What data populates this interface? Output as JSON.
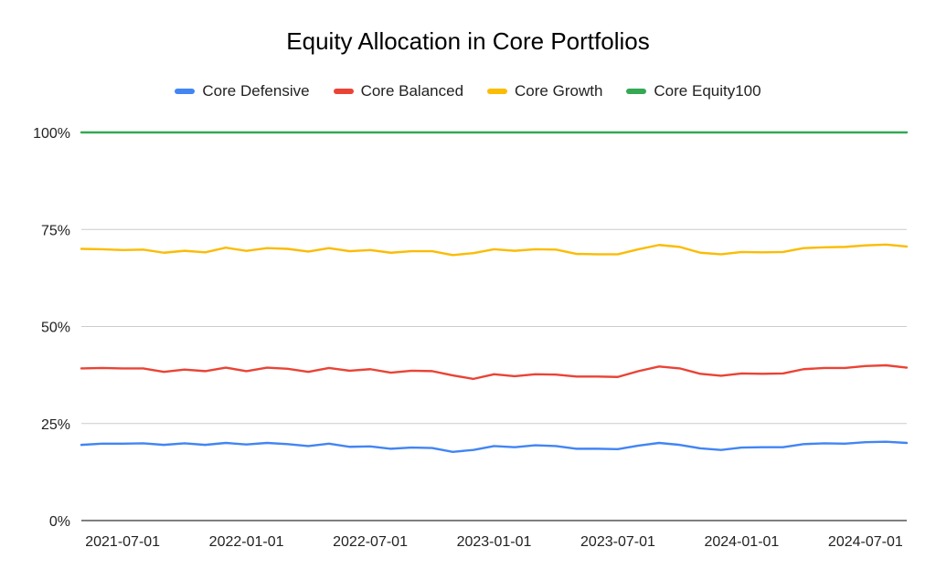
{
  "chart_data": {
    "type": "line",
    "title": "Equity Allocation in Core Portfolios",
    "xlabel": "",
    "ylabel": "",
    "x": [
      "2021-05-01",
      "2021-06-01",
      "2021-07-01",
      "2021-08-01",
      "2021-09-01",
      "2021-10-01",
      "2021-11-01",
      "2021-12-01",
      "2022-01-01",
      "2022-02-01",
      "2022-03-01",
      "2022-04-01",
      "2022-05-01",
      "2022-06-01",
      "2022-07-01",
      "2022-08-01",
      "2022-09-01",
      "2022-10-01",
      "2022-11-01",
      "2022-12-01",
      "2023-01-01",
      "2023-02-01",
      "2023-03-01",
      "2023-04-01",
      "2023-05-01",
      "2023-06-01",
      "2023-07-01",
      "2023-08-01",
      "2023-09-01",
      "2023-10-01",
      "2023-11-01",
      "2023-12-01",
      "2024-01-01",
      "2024-02-01",
      "2024-03-01",
      "2024-04-01",
      "2024-05-01",
      "2024-06-01",
      "2024-07-01",
      "2024-08-01",
      "2024-09-01"
    ],
    "x_tick_labels": [
      "2021-07-01",
      "2022-01-01",
      "2022-07-01",
      "2023-01-01",
      "2023-07-01",
      "2024-01-01",
      "2024-07-01"
    ],
    "y_tick_labels": [
      "0%",
      "25%",
      "50%",
      "75%",
      "100%"
    ],
    "ylim": [
      0,
      100
    ],
    "grid": true,
    "legend_position": "top",
    "series": [
      {
        "name": "Core Defensive",
        "color": "#4285F4",
        "values": [
          19.5,
          19.8,
          19.8,
          19.9,
          19.5,
          19.9,
          19.5,
          20.0,
          19.6,
          20.0,
          19.7,
          19.2,
          19.8,
          19.0,
          19.1,
          18.5,
          18.8,
          18.7,
          17.7,
          18.2,
          19.2,
          18.9,
          19.4,
          19.2,
          18.5,
          18.5,
          18.4,
          19.3,
          20.0,
          19.5,
          18.6,
          18.2,
          18.8,
          18.9,
          18.9,
          19.7,
          19.9,
          19.8,
          20.2,
          20.3,
          20.0
        ]
      },
      {
        "name": "Core Balanced",
        "color": "#EA4335",
        "values": [
          39.2,
          39.3,
          39.2,
          39.2,
          38.3,
          38.9,
          38.5,
          39.4,
          38.5,
          39.4,
          39.1,
          38.3,
          39.3,
          38.6,
          39.0,
          38.1,
          38.6,
          38.5,
          37.4,
          36.5,
          37.7,
          37.2,
          37.7,
          37.6,
          37.1,
          37.1,
          37.0,
          38.5,
          39.7,
          39.2,
          37.8,
          37.3,
          37.9,
          37.8,
          37.9,
          39.0,
          39.3,
          39.3,
          39.8,
          40.0,
          39.4
        ]
      },
      {
        "name": "Core Growth",
        "color": "#FBBC04",
        "values": [
          70.0,
          69.9,
          69.7,
          69.8,
          69.0,
          69.5,
          69.1,
          70.3,
          69.5,
          70.2,
          70.0,
          69.3,
          70.2,
          69.4,
          69.7,
          69.0,
          69.4,
          69.4,
          68.4,
          68.9,
          69.9,
          69.5,
          69.9,
          69.8,
          68.7,
          68.6,
          68.6,
          69.9,
          71.0,
          70.5,
          69.0,
          68.6,
          69.2,
          69.1,
          69.2,
          70.2,
          70.4,
          70.5,
          70.9,
          71.1,
          70.6
        ]
      },
      {
        "name": "Core Equity100",
        "color": "#34A853",
        "values": [
          100,
          100,
          100,
          100,
          100,
          100,
          100,
          100,
          100,
          100,
          100,
          100,
          100,
          100,
          100,
          100,
          100,
          100,
          100,
          100,
          100,
          100,
          100,
          100,
          100,
          100,
          100,
          100,
          100,
          100,
          100,
          100,
          100,
          100,
          100,
          100,
          100,
          100,
          100,
          100,
          100
        ]
      }
    ]
  }
}
